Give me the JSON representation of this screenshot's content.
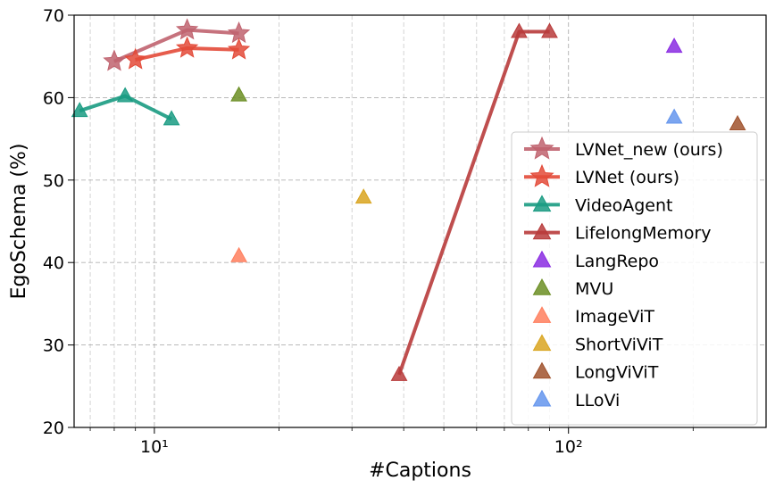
{
  "chart_data": {
    "type": "scatter",
    "xscale": "log",
    "xlabel": "#Captions",
    "ylabel": "EgoSchema (%)",
    "xlim": [
      6.4,
      300
    ],
    "ylim": [
      20,
      70
    ],
    "x_ticks": [
      10,
      100
    ],
    "x_tick_labels": [
      "10¹",
      "10²"
    ],
    "y_ticks": [
      20,
      30,
      40,
      50,
      60,
      70
    ],
    "grid": true,
    "legend_position": "right",
    "series": [
      {
        "name": "LVNet_new (ours)",
        "marker": "star",
        "line": true,
        "color": "#c0636f",
        "points": [
          {
            "x": 8,
            "y": 64.4
          },
          {
            "x": 12,
            "y": 68.2
          },
          {
            "x": 16,
            "y": 67.8
          }
        ]
      },
      {
        "name": "LVNet (ours)",
        "marker": "star",
        "line": true,
        "color": "#e34a38",
        "points": [
          {
            "x": 9,
            "y": 64.6
          },
          {
            "x": 12,
            "y": 66.0
          },
          {
            "x": 16,
            "y": 65.8
          }
        ]
      },
      {
        "name": "VideoAgent",
        "marker": "triangle",
        "line": true,
        "color": "#1a9b82",
        "points": [
          {
            "x": 6.6,
            "y": 58.4
          },
          {
            "x": 8.5,
            "y": 60.2
          },
          {
            "x": 11,
            "y": 57.4
          }
        ]
      },
      {
        "name": "LifelongMemory",
        "marker": "triangle",
        "line": true,
        "color": "#b83b3b",
        "points": [
          {
            "x": 39,
            "y": 26.4
          },
          {
            "x": 76,
            "y": 68.0
          },
          {
            "x": 90,
            "y": 68.0
          }
        ]
      },
      {
        "name": "LangRepo",
        "marker": "triangle",
        "line": false,
        "color": "#8a2be2",
        "points": [
          {
            "x": 180,
            "y": 66.2
          }
        ]
      },
      {
        "name": "MVU",
        "marker": "triangle",
        "line": false,
        "color": "#6b8e23",
        "points": [
          {
            "x": 16,
            "y": 60.3
          }
        ]
      },
      {
        "name": "ImageViT",
        "marker": "triangle",
        "line": false,
        "color": "#ff7f5e",
        "points": [
          {
            "x": 16,
            "y": 40.8
          }
        ]
      },
      {
        "name": "ShortViViT",
        "marker": "triangle",
        "line": false,
        "color": "#d9a520",
        "points": [
          {
            "x": 32,
            "y": 47.9
          }
        ]
      },
      {
        "name": "LongViViT",
        "marker": "triangle",
        "line": false,
        "color": "#a0522d",
        "points": [
          {
            "x": 256,
            "y": 56.8
          }
        ]
      },
      {
        "name": "LLoVi",
        "marker": "triangle",
        "line": false,
        "color": "#6495ed",
        "points": [
          {
            "x": 180,
            "y": 57.6
          }
        ]
      }
    ]
  }
}
